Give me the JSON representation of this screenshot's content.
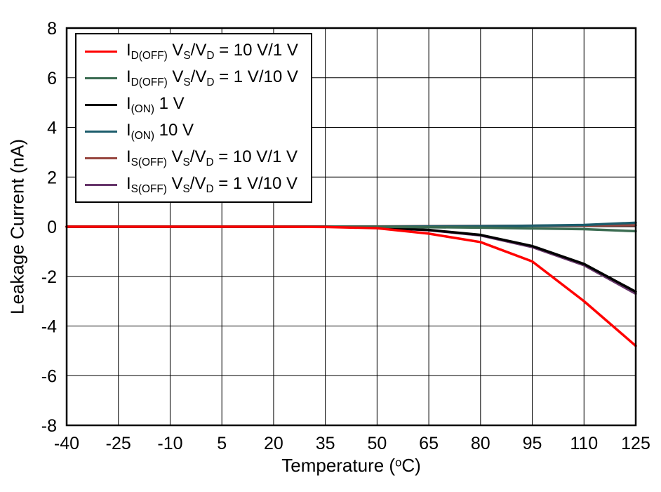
{
  "chart_data": {
    "type": "line",
    "title": "",
    "xlabel": "Temperature (^o^C)",
    "ylabel": "Leakage Current (nA)",
    "xlim": [
      -40,
      125
    ],
    "ylim": [
      -8,
      8
    ],
    "xticks": [
      -40,
      -25,
      -10,
      5,
      20,
      35,
      50,
      65,
      80,
      95,
      110,
      125
    ],
    "yticks": [
      -8,
      -6,
      -4,
      -2,
      0,
      2,
      4,
      6,
      8
    ],
    "grid": true,
    "legend_position": "top-left",
    "x": [
      -40,
      -25,
      -10,
      5,
      20,
      35,
      50,
      65,
      80,
      95,
      110,
      125
    ],
    "series": [
      {
        "name": "I~D(OFF)~ V~S~/V~D~ = 10 V/1 V",
        "color": "#ff0000",
        "values": [
          0,
          0,
          0,
          0,
          0,
          -0.01,
          -0.06,
          -0.28,
          -0.62,
          -1.4,
          -3.0,
          -4.8
        ]
      },
      {
        "name": "I~D(OFF)~ V~S~/V~D~ = 1 V/10 V",
        "color": "#3a6b51",
        "values": [
          0,
          0,
          0,
          0,
          0,
          0,
          0,
          -0.02,
          -0.04,
          -0.07,
          -0.1,
          -0.18
        ]
      },
      {
        "name": "I~(ON)~ 1 V",
        "color": "#000000",
        "values": [
          0,
          0,
          0,
          0,
          0,
          0,
          -0.04,
          -0.13,
          -0.33,
          -0.78,
          -1.5,
          -2.62
        ]
      },
      {
        "name": "I~(ON)~ 10 V",
        "color": "#1c5c6b",
        "values": [
          0,
          0,
          0,
          0,
          0,
          0,
          0,
          0.01,
          0.02,
          0.04,
          0.07,
          0.16
        ]
      },
      {
        "name": "I~S(OFF)~ V~S~/V~D~ = 10 V/1 V",
        "color": "#97463f",
        "values": [
          0,
          0,
          0,
          0,
          0,
          0,
          0.01,
          0.02,
          0.03,
          0.04,
          0.05,
          0.06
        ]
      },
      {
        "name": "I~S(OFF)~ V~S~/V~D~ = 1 V/10 V",
        "color": "#67366b",
        "values": [
          0,
          0,
          0,
          0,
          0,
          0,
          -0.04,
          -0.14,
          -0.35,
          -0.82,
          -1.55,
          -2.7
        ]
      }
    ]
  }
}
